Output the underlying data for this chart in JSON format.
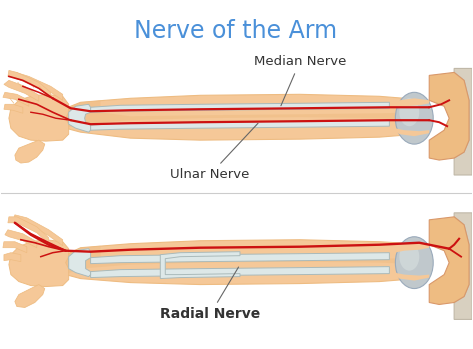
{
  "title": "Nerve of the Arm",
  "title_color": "#4a90d9",
  "title_fontsize": 17,
  "background_color": "#ffffff",
  "skin_light": "#f5c898",
  "skin_mid": "#eebc82",
  "skin_dark": "#d9986a",
  "skin_shadow": "#c8855a",
  "bone_fill": "#dde8e8",
  "bone_edge": "#aababa",
  "elbow_fill": "#c0c8cc",
  "elbow_edge": "#9aaabb",
  "shoulder_fill": "#c8b090",
  "nerve_color": "#cc1111",
  "label_color": "#333333",
  "label_fontsize": 9.5,
  "median_label": "Median Nerve",
  "ulnar_label": "Ulnar Nerve",
  "radial_label": "Radial Nerve"
}
